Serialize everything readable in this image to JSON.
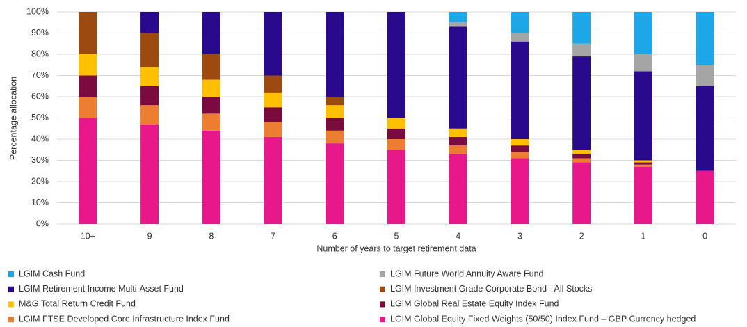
{
  "chart_data": {
    "type": "stacked_bar",
    "categories": [
      "10+",
      "9",
      "8",
      "7",
      "6",
      "5",
      "4",
      "3",
      "2",
      "1",
      "0"
    ],
    "x_label": "Number of years to target retirement data",
    "y_label": "Percentage allocation",
    "ylim": [
      0,
      100
    ],
    "yticks": [
      {
        "value": 0,
        "label": "0%"
      },
      {
        "value": 10,
        "label": "10%"
      },
      {
        "value": 20,
        "label": "20%"
      },
      {
        "value": 30,
        "label": "30%"
      },
      {
        "value": 40,
        "label": "40%"
      },
      {
        "value": 50,
        "label": "50%"
      },
      {
        "value": 60,
        "label": "60%"
      },
      {
        "value": 70,
        "label": "70%"
      },
      {
        "value": 80,
        "label": "80%"
      },
      {
        "value": 90,
        "label": "90%"
      },
      {
        "value": 100,
        "label": "100%"
      }
    ],
    "grid": true,
    "series": [
      {
        "name": "LGIM Global Equity Fixed Weights (50/50) Index Fund – GBP Currency hedged",
        "color": "#e8178a",
        "values": [
          50,
          47,
          44,
          41,
          38,
          35,
          33,
          31,
          29,
          27,
          25
        ]
      },
      {
        "name": "LGIM FTSE Developed Core Infrastructure Index Fund",
        "color": "#ed7d31",
        "values": [
          10,
          9,
          8,
          7,
          6,
          5,
          4,
          3,
          2,
          1,
          0
        ]
      },
      {
        "name": "LGIM Global Real Estate Equity Index Fund",
        "color": "#7b0a3f",
        "values": [
          10,
          9,
          8,
          7,
          6,
          5,
          4,
          3,
          2,
          1,
          0
        ]
      },
      {
        "name": "M&G Total Return Credit Fund",
        "color": "#ffc000",
        "values": [
          10,
          9,
          8,
          7,
          6,
          5,
          4,
          3,
          2,
          1,
          0
        ]
      },
      {
        "name": "LGIM Investment Grade Corporate Bond - All Stocks",
        "color": "#9c4a0f",
        "values": [
          20,
          16,
          12,
          8,
          4,
          0,
          0,
          0,
          0,
          0,
          0
        ]
      },
      {
        "name": "LGIM Retirement Income Multi-Asset Fund",
        "color": "#2a0a8c",
        "values": [
          0,
          10,
          20,
          30,
          40,
          50,
          48,
          46,
          44,
          42,
          40
        ]
      },
      {
        "name": "LGIM Future World Annuity Aware Fund",
        "color": "#a5a5a5",
        "values": [
          0,
          0,
          0,
          0,
          0,
          0,
          2,
          4,
          6,
          8,
          10
        ]
      },
      {
        "name": "LGIM Cash Fund",
        "color": "#1ea7e8",
        "values": [
          0,
          0,
          0,
          0,
          0,
          0,
          5,
          10,
          15,
          20,
          25
        ]
      }
    ]
  }
}
